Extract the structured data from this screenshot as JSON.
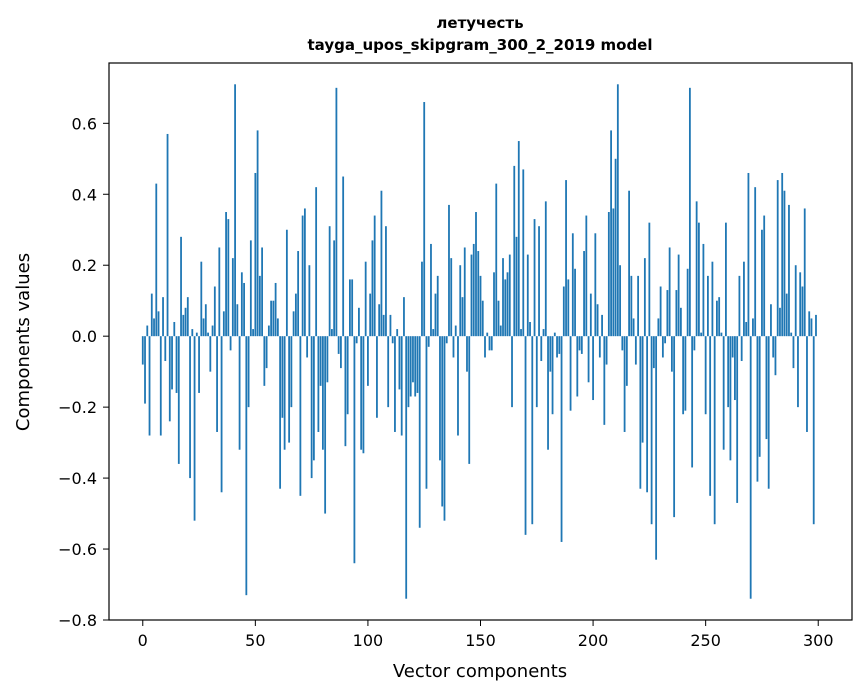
{
  "chart_data": {
    "type": "bar",
    "title": "летучесть",
    "subtitle": "tayga_upos_skipgram_300_2_2019 model",
    "xlabel": "Vector components",
    "ylabel": "Components values",
    "xlim": [
      -15,
      315
    ],
    "ylim": [
      -0.8,
      0.77
    ],
    "xticks": [
      0,
      50,
      100,
      150,
      200,
      250,
      300
    ],
    "yticks": [
      -0.8,
      -0.6,
      -0.4,
      -0.2,
      0.0,
      0.2,
      0.4,
      0.6
    ],
    "ytick_labels": [
      "−0.8",
      "−0.6",
      "−0.4",
      "−0.2",
      "0.0",
      "0.2",
      "0.4",
      "0.6"
    ],
    "bar_color": "#1f77b4",
    "grid": false,
    "x": "0..299",
    "values": [
      -0.08,
      -0.19,
      0.03,
      -0.28,
      0.12,
      0.05,
      0.43,
      0.07,
      -0.28,
      0.11,
      -0.07,
      0.57,
      -0.24,
      -0.15,
      0.04,
      -0.16,
      -0.36,
      0.28,
      0.06,
      0.08,
      0.11,
      -0.4,
      0.02,
      -0.52,
      0.01,
      -0.16,
      0.21,
      0.05,
      0.09,
      0.01,
      -0.1,
      0.03,
      0.14,
      -0.27,
      0.25,
      -0.44,
      0.07,
      0.35,
      0.33,
      -0.04,
      0.22,
      0.71,
      0.09,
      -0.32,
      0.18,
      0.15,
      -0.73,
      -0.2,
      0.27,
      0.02,
      0.46,
      0.58,
      0.17,
      0.25,
      -0.14,
      -0.09,
      0.03,
      0.1,
      0.1,
      0.15,
      0.05,
      -0.43,
      -0.23,
      -0.32,
      0.3,
      -0.3,
      -0.2,
      0.07,
      0.12,
      0.24,
      -0.45,
      0.34,
      0.36,
      -0.06,
      0.2,
      -0.4,
      -0.35,
      0.42,
      -0.27,
      -0.14,
      -0.32,
      -0.5,
      -0.13,
      0.31,
      0.02,
      0.27,
      0.7,
      -0.05,
      -0.09,
      0.45,
      -0.31,
      -0.22,
      0.16,
      0.16,
      -0.64,
      -0.02,
      0.08,
      -0.32,
      -0.33,
      0.21,
      -0.14,
      0.12,
      0.27,
      0.34,
      -0.23,
      0.09,
      0.41,
      0.06,
      0.31,
      -0.2,
      0.06,
      -0.02,
      -0.27,
      0.02,
      -0.15,
      -0.28,
      0.11,
      -0.74,
      -0.2,
      -0.17,
      -0.13,
      -0.17,
      -0.16,
      -0.54,
      0.21,
      0.66,
      -0.43,
      -0.03,
      0.26,
      0.02,
      0.12,
      0.17,
      -0.35,
      -0.48,
      -0.52,
      -0.02,
      0.37,
      0.22,
      -0.06,
      0.03,
      -0.28,
      0.2,
      0.11,
      0.25,
      -0.1,
      -0.36,
      0.23,
      0.26,
      0.35,
      0.24,
      0.17,
      0.1,
      -0.06,
      0.01,
      -0.04,
      -0.04,
      0.18,
      0.43,
      0.1,
      0.03,
      0.22,
      0.16,
      0.18,
      0.23,
      -0.2,
      0.48,
      0.28,
      0.55,
      0.02,
      0.47,
      -0.56,
      0.23,
      0.04,
      -0.53,
      0.33,
      -0.2,
      0.31,
      -0.07,
      0.02,
      0.38,
      -0.32,
      -0.1,
      -0.22,
      0.01,
      -0.06,
      -0.05,
      -0.58,
      0.14,
      0.44,
      0.16,
      -0.21,
      0.29,
      0.19,
      -0.17,
      -0.04,
      -0.05,
      0.24,
      0.34,
      -0.13,
      0.12,
      -0.18,
      0.29,
      0.09,
      -0.06,
      0.06,
      -0.25,
      -0.08,
      0.35,
      0.58,
      0.36,
      0.5,
      0.71,
      0.2,
      -0.04,
      -0.27,
      -0.14,
      0.41,
      0.17,
      0.05,
      -0.08,
      0.17,
      -0.43,
      -0.3,
      0.22,
      -0.44,
      0.32,
      -0.53,
      -0.09,
      -0.63,
      0.05,
      0.14,
      -0.06,
      -0.02,
      0.13,
      0.25,
      -0.1,
      -0.51,
      0.13,
      0.23,
      0.08,
      -0.22,
      -0.21,
      0.19,
      0.7,
      -0.37,
      -0.04,
      0.38,
      0.32,
      0.01,
      0.26,
      -0.22,
      0.17,
      -0.45,
      0.21,
      -0.53,
      0.1,
      0.11,
      0.01,
      -0.32,
      0.32,
      -0.2,
      -0.35,
      -0.06,
      -0.18,
      -0.47,
      0.17,
      -0.07,
      0.21,
      0.04,
      0.46,
      -0.74,
      0.05,
      0.42,
      -0.41,
      -0.34,
      0.3,
      0.34,
      -0.29,
      -0.43,
      0.09,
      -0.06,
      -0.11,
      0.44,
      0.08,
      0.46,
      0.41,
      0.12,
      0.37,
      0.01,
      -0.09,
      0.2,
      -0.2,
      0.18,
      0.14,
      0.36,
      -0.27,
      0.07,
      0.05,
      -0.53,
      0.06
    ]
  }
}
